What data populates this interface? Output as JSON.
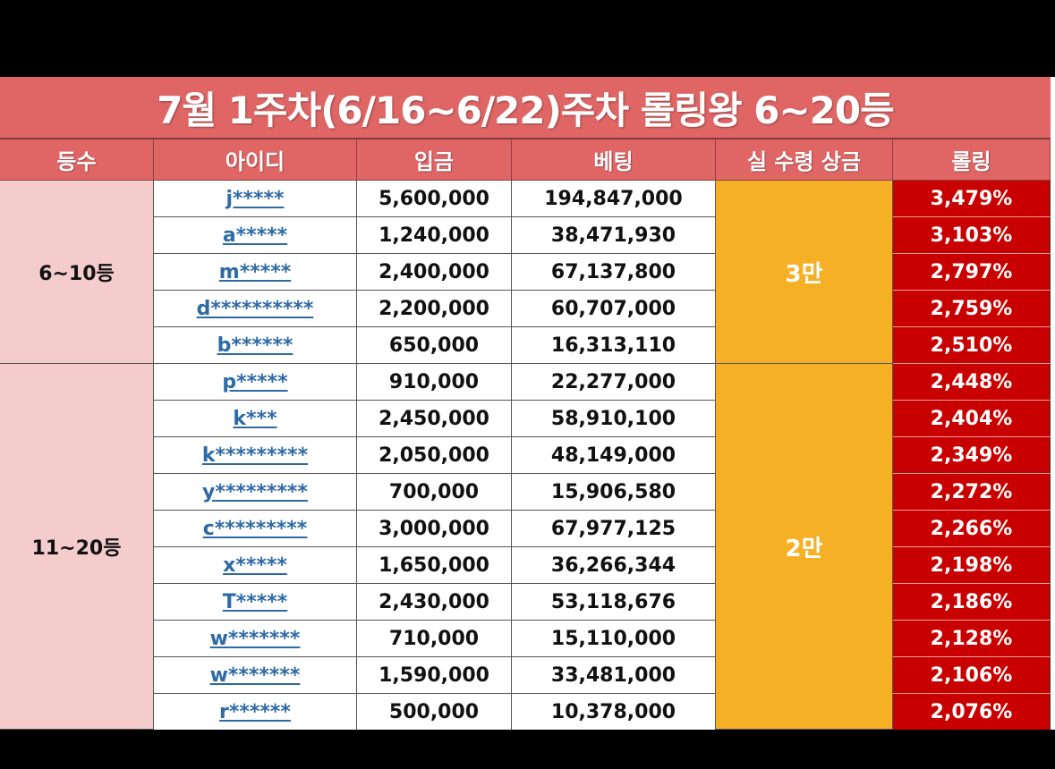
{
  "title": "7월 1주차(6/16~6/22)주차 롤링왕 6~20등",
  "headers": {
    "rank": "등수",
    "user_id": "아이디",
    "deposit": "입금",
    "betting": "베팅",
    "prize": "실 수령 상금",
    "rolling": "롤링"
  },
  "groups": [
    {
      "rank_label": "6~10등",
      "prize": "3만"
    },
    {
      "rank_label": "11~20등",
      "prize": "2만"
    }
  ],
  "rows": [
    {
      "id": "j*****",
      "deposit": "5,600,000",
      "betting": "194,847,000",
      "rolling": "3,479%"
    },
    {
      "id": "a*****",
      "deposit": "1,240,000",
      "betting": "38,471,930",
      "rolling": "3,103%"
    },
    {
      "id": "m*****",
      "deposit": "2,400,000",
      "betting": "67,137,800",
      "rolling": "2,797%"
    },
    {
      "id": "d**********",
      "deposit": "2,200,000",
      "betting": "60,707,000",
      "rolling": "2,759%"
    },
    {
      "id": "b******",
      "deposit": "650,000",
      "betting": "16,313,110",
      "rolling": "2,510%"
    },
    {
      "id": "p*****",
      "deposit": "910,000",
      "betting": "22,277,000",
      "rolling": "2,448%"
    },
    {
      "id": "k***",
      "deposit": "2,450,000",
      "betting": "58,910,100",
      "rolling": "2,404%"
    },
    {
      "id": "k*********",
      "deposit": "2,050,000",
      "betting": "48,149,000",
      "rolling": "2,349%"
    },
    {
      "id": "y*********",
      "deposit": "700,000",
      "betting": "15,906,580",
      "rolling": "2,272%"
    },
    {
      "id": "c*********",
      "deposit": "3,000,000",
      "betting": "67,977,125",
      "rolling": "2,266%"
    },
    {
      "id": "x*****",
      "deposit": "1,650,000",
      "betting": "36,266,344",
      "rolling": "2,198%"
    },
    {
      "id": "T*****",
      "deposit": "2,430,000",
      "betting": "53,118,676",
      "rolling": "2,186%"
    },
    {
      "id": "w*******",
      "deposit": "710,000",
      "betting": "15,110,000",
      "rolling": "2,128%"
    },
    {
      "id": "w*******",
      "deposit": "1,590,000",
      "betting": "33,481,000",
      "rolling": "2,106%"
    },
    {
      "id": "r******",
      "deposit": "500,000",
      "betting": "10,378,000",
      "rolling": "2,076%"
    }
  ],
  "colors": {
    "header_bg": "#e06666",
    "group_bg": "#f4cccc",
    "prize_bg": "#f6b026",
    "rolling_bg": "#c80000",
    "id_link": "#2e6aa6"
  }
}
